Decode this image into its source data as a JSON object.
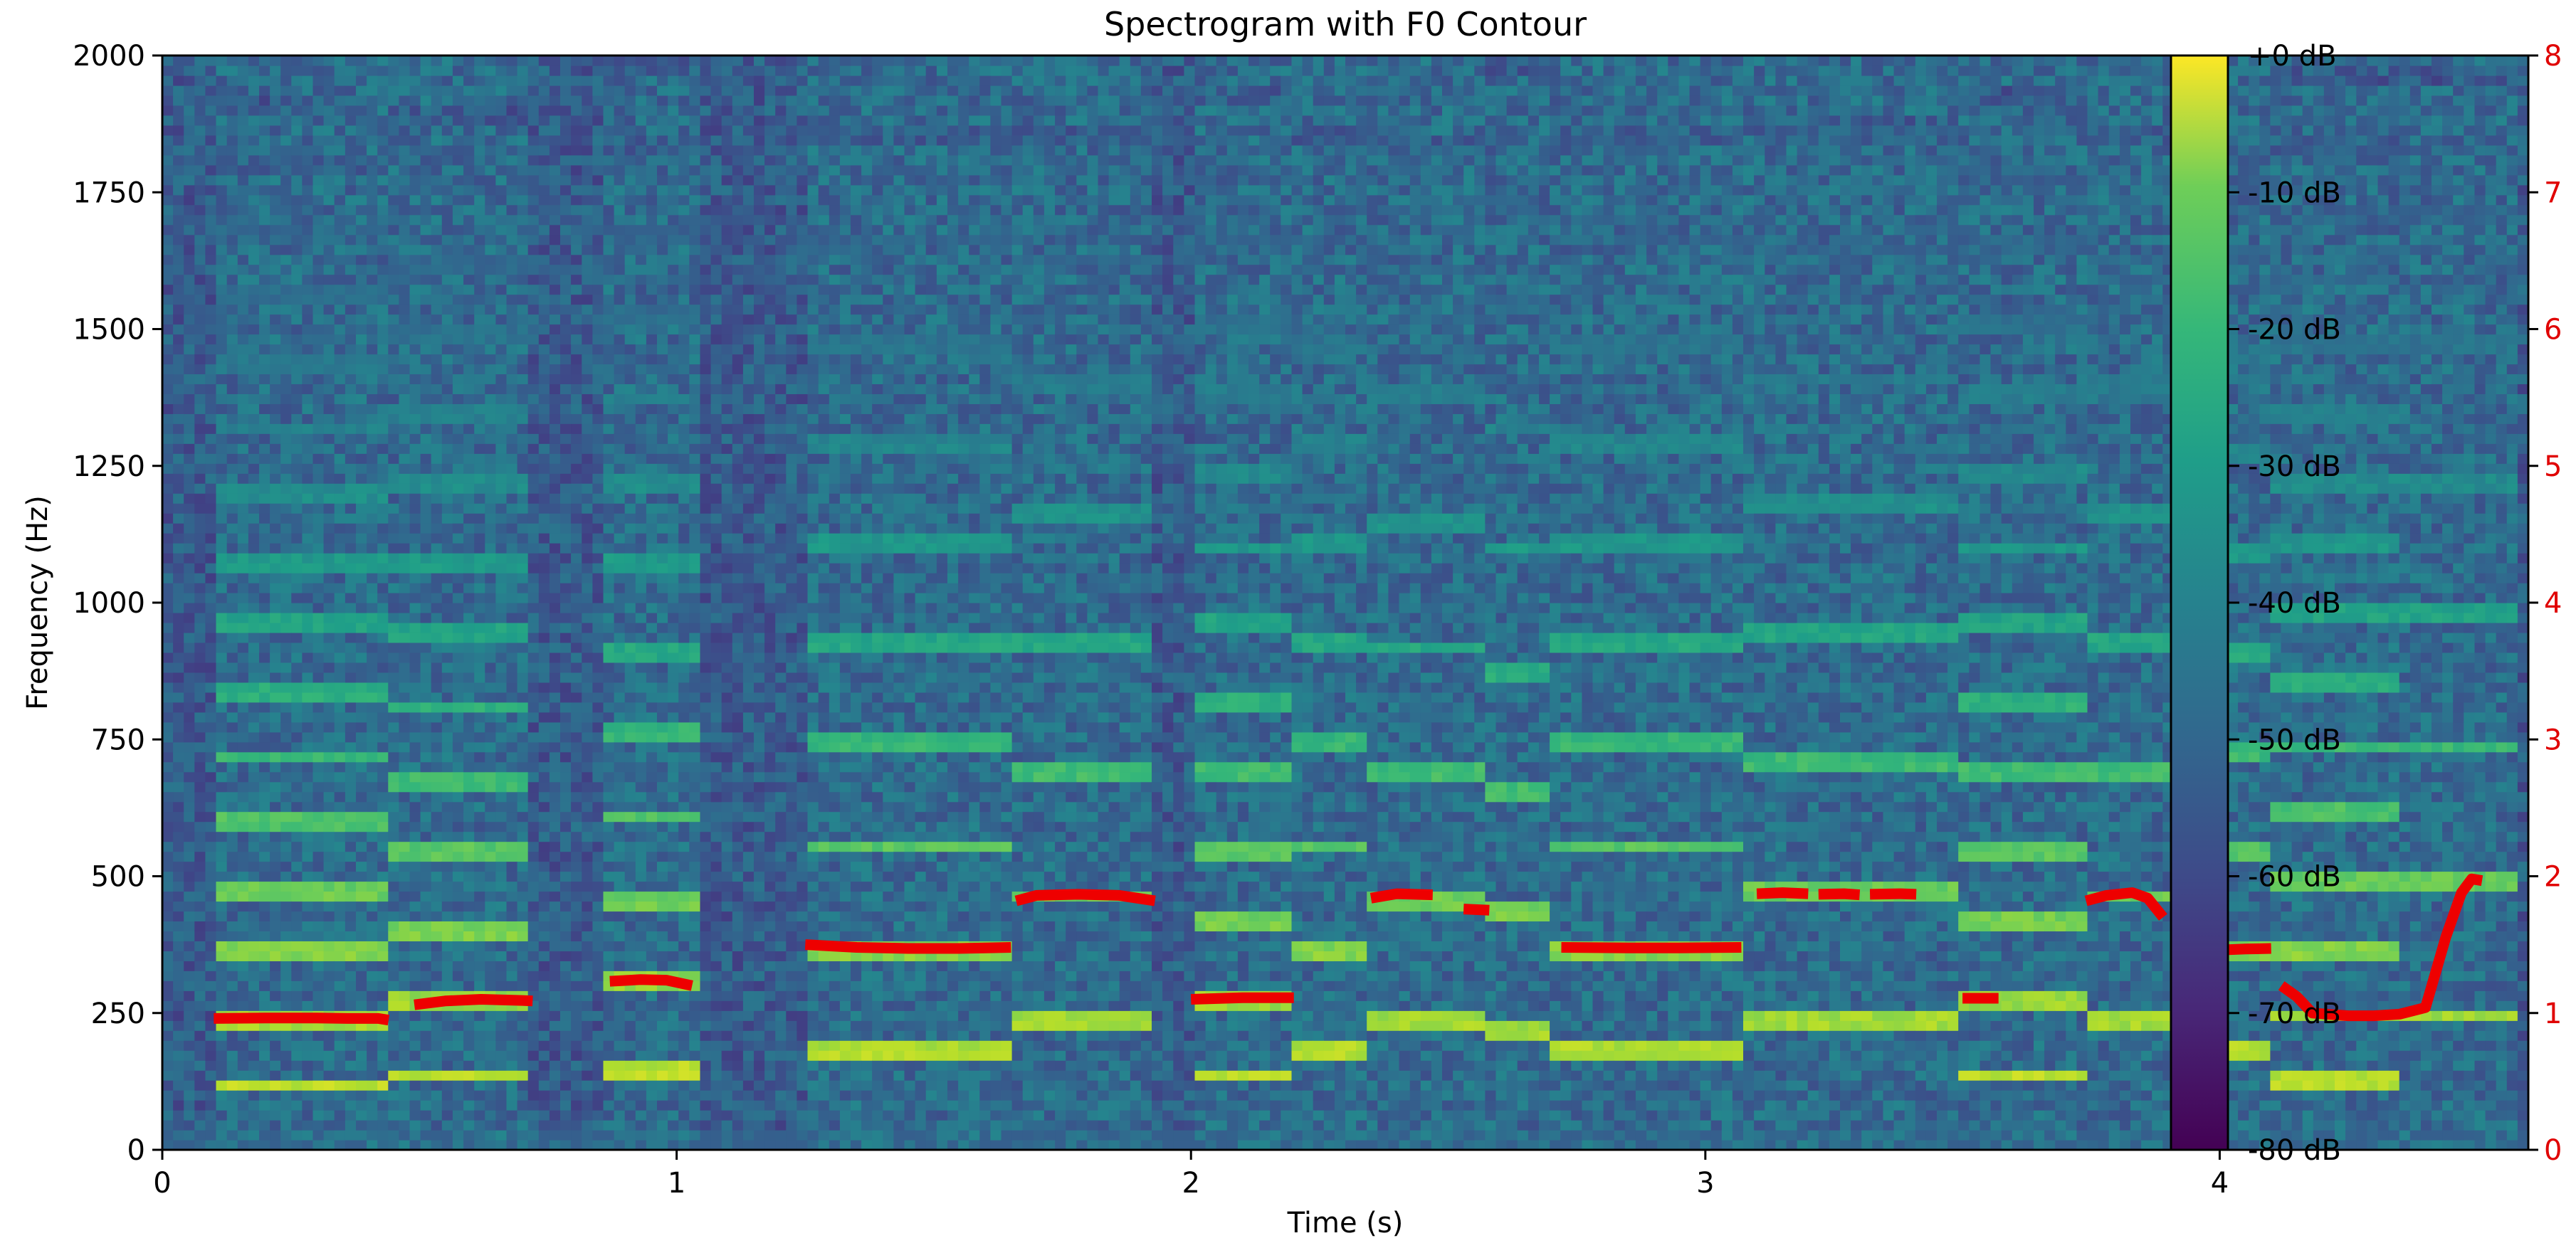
{
  "chart_data": {
    "type": "heatmap",
    "title": "Spectrogram with F0 Contour",
    "xlabel": "Time (s)",
    "ylabel": "Frequency (Hz)",
    "xlim": [
      0,
      4.6
    ],
    "ylim": [
      0,
      2000
    ],
    "x_ticks": [
      {
        "value": 0,
        "label": "0"
      },
      {
        "value": 1,
        "label": "1"
      },
      {
        "value": 2,
        "label": "2"
      },
      {
        "value": 3,
        "label": "3"
      },
      {
        "value": 4,
        "label": "4"
      }
    ],
    "y_ticks": [
      {
        "value": 0,
        "label": "0"
      },
      {
        "value": 250,
        "label": "250"
      },
      {
        "value": 500,
        "label": "500"
      },
      {
        "value": 750,
        "label": "750"
      },
      {
        "value": 1000,
        "label": "1000"
      },
      {
        "value": 1250,
        "label": "1250"
      },
      {
        "value": 1500,
        "label": "1500"
      },
      {
        "value": 1750,
        "label": "1750"
      },
      {
        "value": 2000,
        "label": "2000"
      }
    ],
    "right_axis": {
      "color": "#e00000",
      "tick_labels": [
        "0",
        "1",
        "2",
        "3",
        "4",
        "5",
        "6",
        "7",
        "8"
      ]
    },
    "colorbar": {
      "colormap": "viridis",
      "range_db": [
        -80,
        0
      ],
      "tick_labels": [
        "+0 dB",
        "-10 dB",
        "-20 dB",
        "-30 dB",
        "-40 dB",
        "-50 dB",
        "-60 dB",
        "-70 dB",
        "-80 dB"
      ]
    },
    "notes": [
      {
        "start": 0.1,
        "end": 0.44,
        "f0": 240
      },
      {
        "start": 0.44,
        "end": 0.72,
        "f0": 270
      },
      {
        "start": 0.86,
        "end": 1.05,
        "f0": 305
      },
      {
        "start": 1.25,
        "end": 1.65,
        "f0": 370
      },
      {
        "start": 1.65,
        "end": 1.93,
        "f0": 465
      },
      {
        "start": 2.0,
        "end": 2.2,
        "f0": 275
      },
      {
        "start": 2.2,
        "end": 2.35,
        "f0": 370
      },
      {
        "start": 2.35,
        "end": 2.58,
        "f0": 460
      },
      {
        "start": 2.58,
        "end": 2.7,
        "f0": 440
      },
      {
        "start": 2.7,
        "end": 3.08,
        "f0": 370
      },
      {
        "start": 3.08,
        "end": 3.5,
        "f0": 470
      },
      {
        "start": 3.5,
        "end": 3.75,
        "f0": 275
      },
      {
        "start": 3.75,
        "end": 3.95,
        "f0": 465
      },
      {
        "start": 3.95,
        "end": 4.1,
        "f0": 365
      },
      {
        "start": 4.1,
        "end": 4.35,
        "f0": 245
      },
      {
        "start": 4.35,
        "end": 4.58,
        "f0": 490
      }
    ],
    "f0_contour": [
      {
        "x": [
          0.1,
          0.2,
          0.3,
          0.36,
          0.42,
          0.44
        ],
        "y": [
          240,
          241,
          241,
          240,
          240,
          237
        ]
      },
      {
        "x": [
          0.49,
          0.55,
          0.62,
          0.7,
          0.72
        ],
        "y": [
          265,
          272,
          275,
          273,
          272
        ]
      },
      {
        "x": [
          0.87,
          0.93,
          0.98,
          1.03
        ],
        "y": [
          308,
          311,
          310,
          300
        ]
      },
      {
        "x": [
          1.25,
          1.35,
          1.45,
          1.55,
          1.65
        ],
        "y": [
          375,
          370,
          368,
          368,
          370
        ]
      },
      {
        "x": [
          1.66,
          1.7,
          1.78,
          1.86,
          1.93
        ],
        "y": [
          455,
          465,
          467,
          465,
          455
        ]
      },
      {
        "x": [
          2.0,
          2.1,
          2.2
        ],
        "y": [
          275,
          278,
          278
        ]
      },
      {
        "x": [
          2.35,
          2.4,
          2.47
        ],
        "y": [
          460,
          468,
          466
        ]
      },
      {
        "x": [
          2.53,
          2.58
        ],
        "y": [
          440,
          438
        ]
      },
      {
        "x": [
          2.72,
          2.85,
          2.95,
          3.07
        ],
        "y": [
          370,
          369,
          369,
          370
        ]
      },
      {
        "x": [
          3.1,
          3.15,
          3.2
        ],
        "y": [
          468,
          470,
          468
        ]
      },
      {
        "x": [
          3.22,
          3.27,
          3.3
        ],
        "y": [
          467,
          468,
          466
        ]
      },
      {
        "x": [
          3.32,
          3.38,
          3.41
        ],
        "y": [
          467,
          468,
          467
        ]
      },
      {
        "x": [
          3.5,
          3.57
        ],
        "y": [
          277,
          277
        ]
      },
      {
        "x": [
          3.74,
          3.78,
          3.83,
          3.86,
          3.89
        ],
        "y": [
          455,
          465,
          470,
          460,
          425
        ]
      },
      {
        "x": [
          4.0,
          4.05,
          4.1
        ],
        "y": [
          365,
          367,
          368
        ]
      },
      {
        "x": [
          4.12,
          4.15,
          4.18,
          4.25,
          4.3,
          4.35,
          4.4,
          4.44,
          4.47,
          4.49,
          4.51
        ],
        "y": [
          300,
          280,
          250,
          245,
          245,
          248,
          260,
          390,
          470,
          495,
          492
        ]
      }
    ]
  }
}
